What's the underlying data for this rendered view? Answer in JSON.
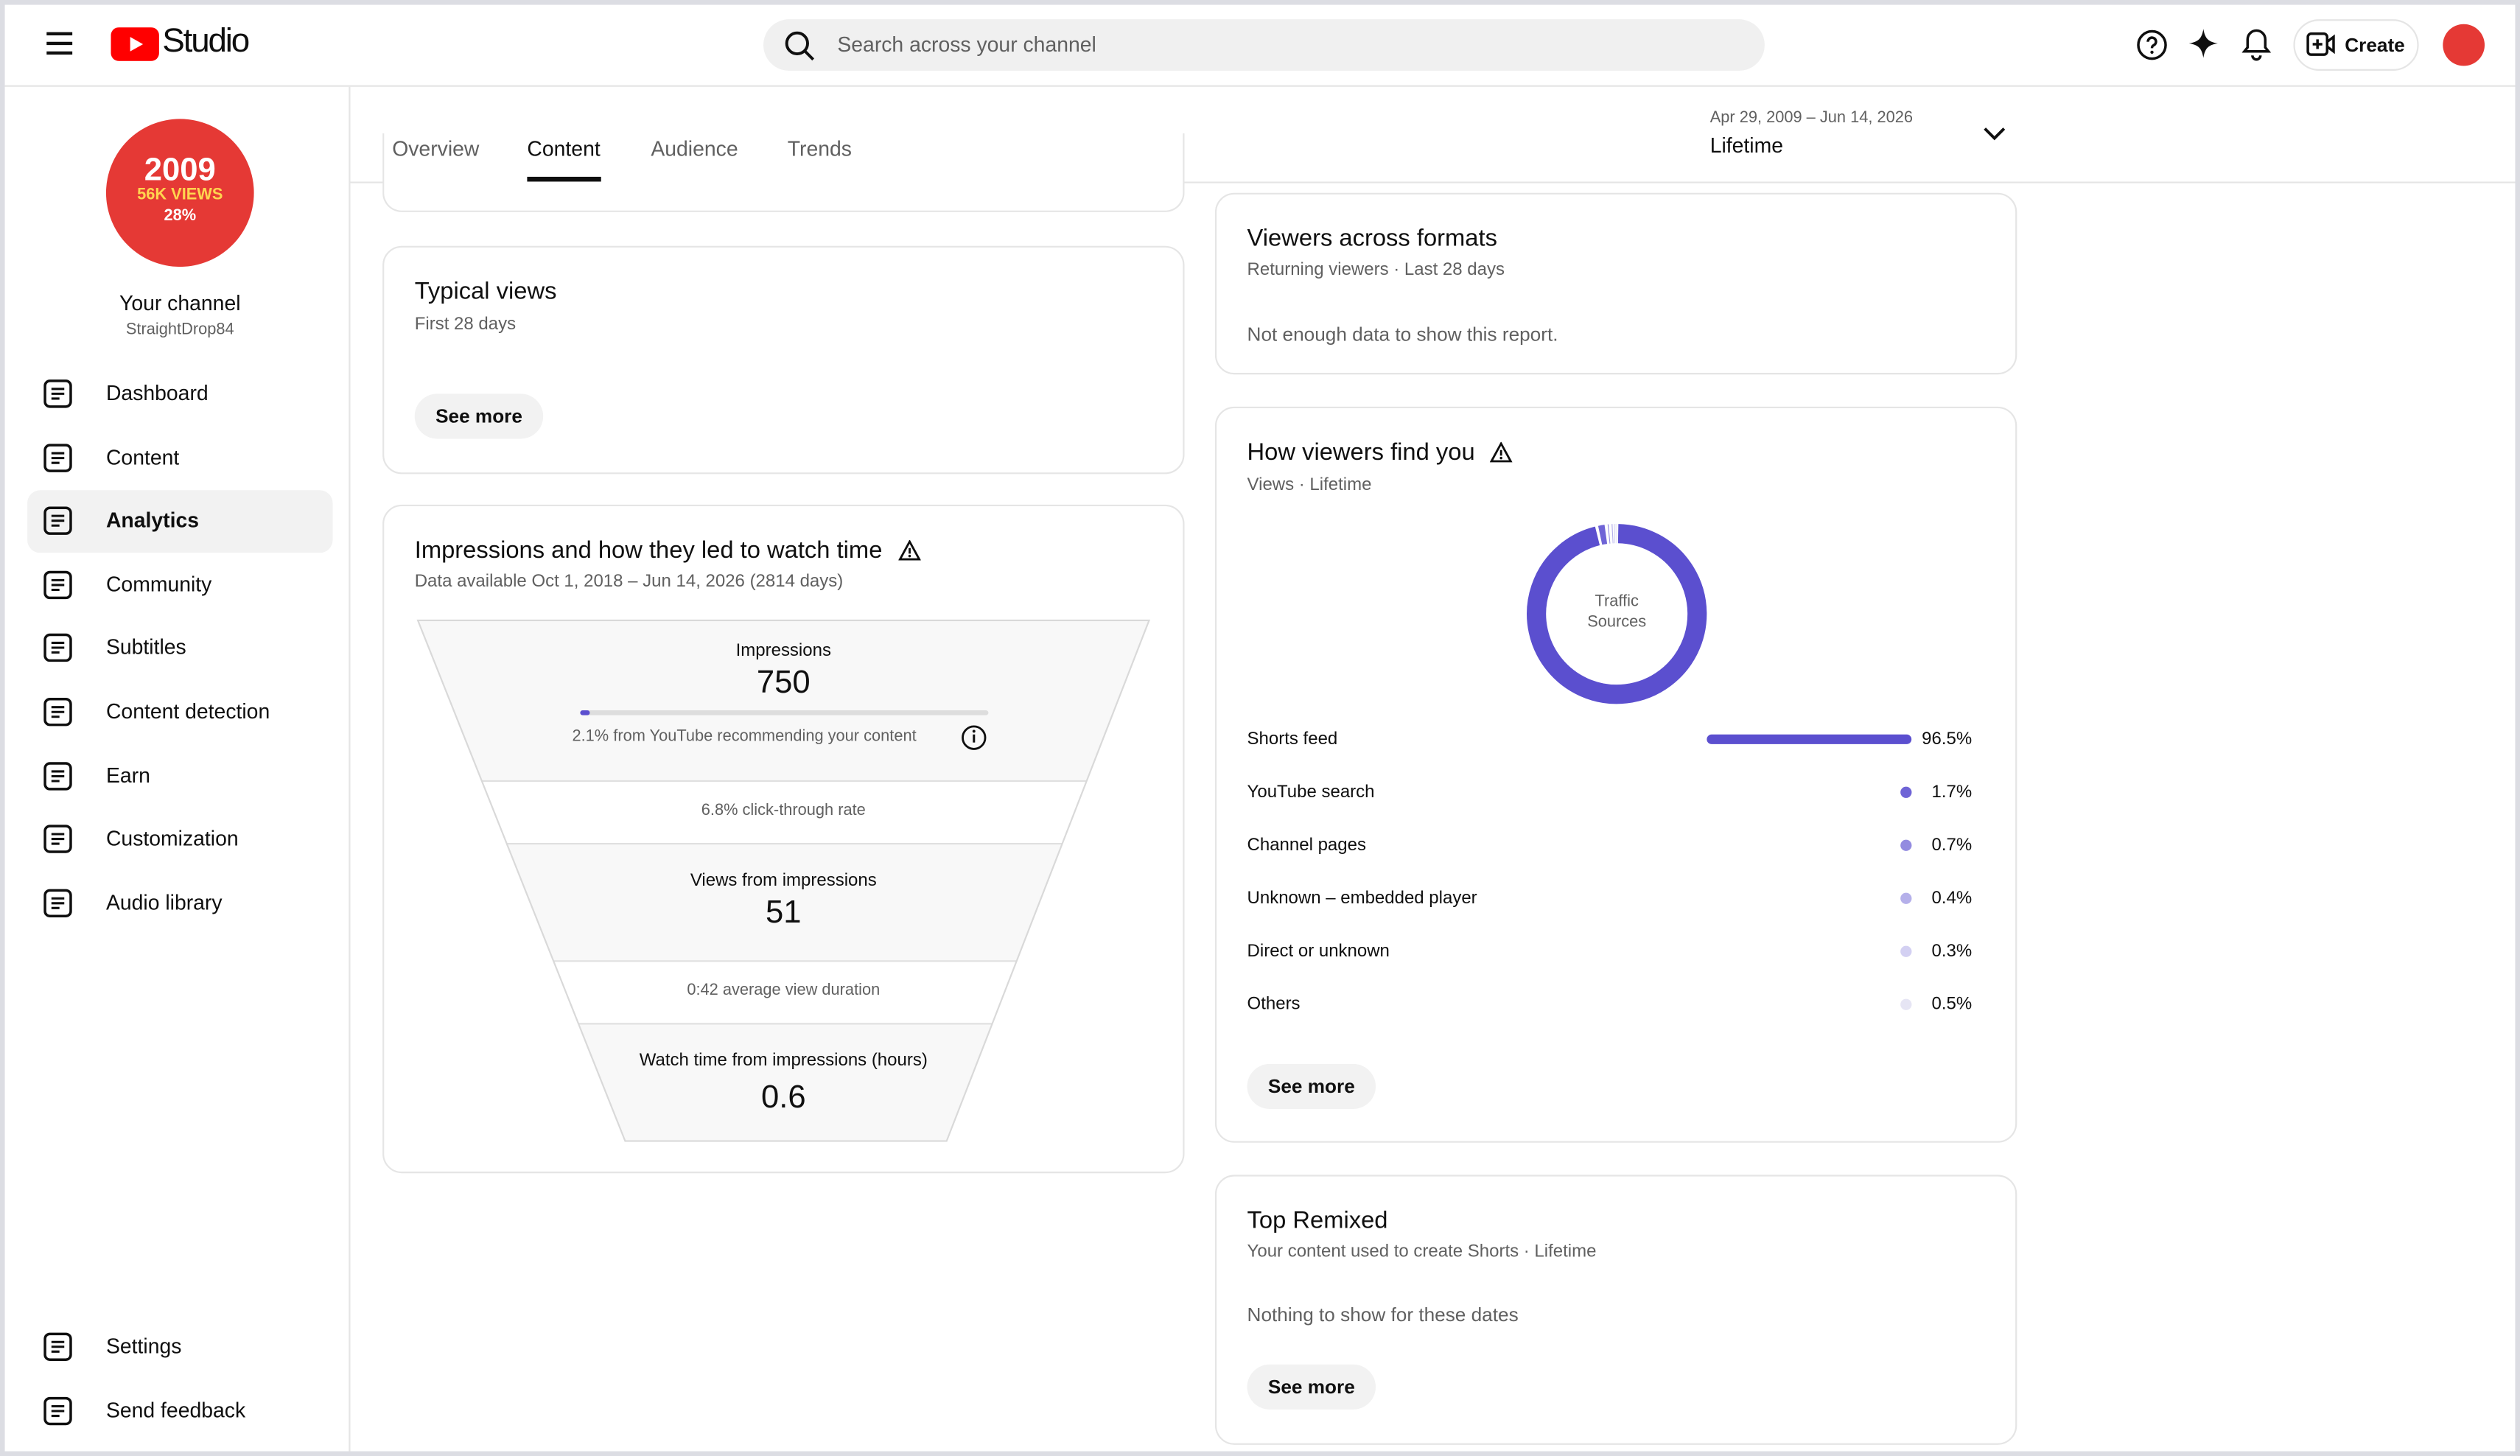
{
  "header": {
    "logo": "Studio",
    "search_placeholder": "Search across your channel",
    "create": "Create"
  },
  "channel": {
    "avatar_lines": [
      "2009",
      "56K VIEWS",
      "28%"
    ],
    "name": "Your channel",
    "handle": "StraightDrop84"
  },
  "nav": [
    {
      "label": "Dashboard"
    },
    {
      "label": "Content"
    },
    {
      "label": "Analytics",
      "selected": true
    },
    {
      "label": "Community"
    },
    {
      "label": "Subtitles"
    },
    {
      "label": "Content detection"
    },
    {
      "label": "Earn"
    },
    {
      "label": "Customization"
    },
    {
      "label": "Audio library"
    }
  ],
  "footer_nav": [
    "Settings",
    "Send feedback"
  ],
  "tabs": [
    {
      "label": "Overview"
    },
    {
      "label": "Content",
      "selected": true
    },
    {
      "label": "Audience"
    },
    {
      "label": "Trends"
    }
  ],
  "date_range": {
    "range": "Apr 29, 2009 – Jun 14, 2026",
    "period": "Lifetime"
  },
  "typical_views": {
    "title": "Typical views",
    "subtitle": "First 28 days",
    "button": "See more"
  },
  "funnel": {
    "title": "Impressions and how they led to watch time",
    "subtitle": "Data available Oct 1, 2018 – Jun 14, 2026 (2814 days)",
    "impressions": {
      "label": "Impressions",
      "value": "750",
      "note": "2.1% from YouTube recommending your content"
    },
    "ctr": "6.8% click-through rate",
    "views": {
      "label": "Views from impressions",
      "value": "51"
    },
    "avd": "0:42 average view duration",
    "watch": {
      "label": "Watch time from impressions (hours)",
      "value": "0.6"
    }
  },
  "formats": {
    "title": "Viewers across formats",
    "subtitle": "Returning viewers · Last 28 days",
    "message": "Not enough data to show this report."
  },
  "traffic": {
    "title": "How viewers find you",
    "subtitle": "Views · Lifetime",
    "center_label": "Traffic Sources",
    "button": "See more",
    "sources": [
      {
        "name": "Shorts feed",
        "value": 96.5,
        "value_label": "96.5%",
        "color": "#5b4fcf"
      },
      {
        "name": "YouTube search",
        "value": 1.7,
        "value_label": "1.7%",
        "color": "#6f64d6"
      },
      {
        "name": "Channel pages",
        "value": 0.7,
        "value_label": "0.7%",
        "color": "#938be0"
      },
      {
        "name": "Unknown – embedded player",
        "value": 0.4,
        "value_label": "0.4%",
        "color": "#b5b0ea"
      },
      {
        "name": "Direct or unknown",
        "value": 0.3,
        "value_label": "0.3%",
        "color": "#d3d0f2"
      },
      {
        "name": "Others",
        "value": 0.5,
        "value_label": "0.5%",
        "color": "#e6e5f4"
      }
    ]
  },
  "remixed": {
    "title": "Top Remixed",
    "subtitle": "Your content used to create Shorts · Lifetime",
    "message": "Nothing to show for these dates",
    "button": "See more"
  }
}
